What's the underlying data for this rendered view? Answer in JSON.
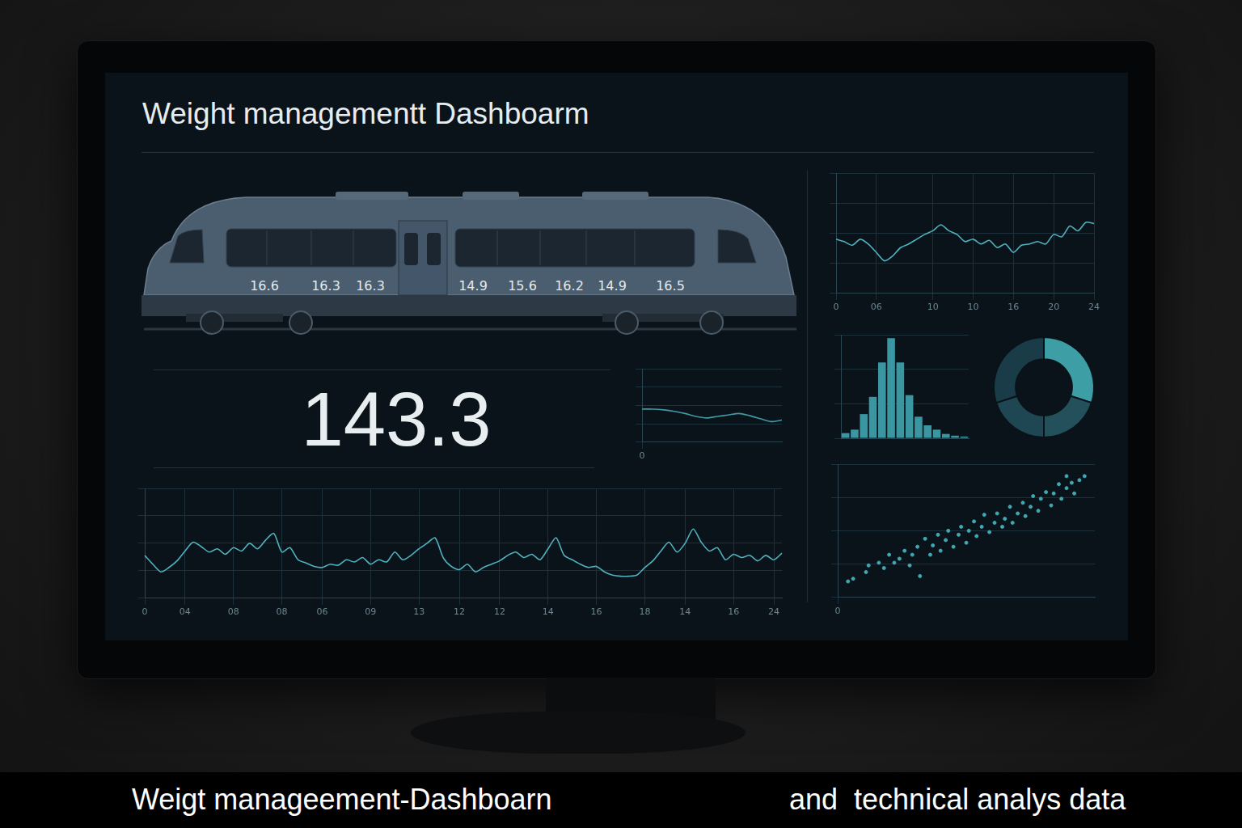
{
  "header": {
    "title": "Weight managementt Dashboarm"
  },
  "train": {
    "labels": [
      16.6,
      16.3,
      16.3,
      14.9,
      15.6,
      16.2,
      14.9,
      16.5
    ]
  },
  "kpi": {
    "value": 143.3
  },
  "chart_data": [
    {
      "type": "line",
      "color": "#4fb3bf",
      "grid": true,
      "tick_labels": "x",
      "categories": [
        "0",
        null,
        null,
        null,
        null,
        "06",
        null,
        null,
        null,
        null,
        null,
        null,
        "10",
        null,
        null,
        null,
        null,
        "10",
        null,
        null,
        null,
        null,
        "16",
        null,
        null,
        null,
        null,
        "20",
        null,
        null,
        null,
        null,
        "24"
      ],
      "values": [
        4.5,
        4.3,
        4.0,
        4.5,
        4.1,
        3.4,
        2.7,
        3.1,
        3.8,
        4.1,
        4.5,
        4.9,
        5.2,
        5.7,
        5.2,
        4.9,
        4.3,
        4.5,
        4.1,
        4.4,
        3.8,
        4.1,
        3.4,
        4.0,
        4.1,
        4.3,
        4.1,
        4.9,
        4.7,
        5.6,
        5.2,
        5.9,
        5.8
      ],
      "ylim": [
        0,
        10
      ],
      "yticks": [
        0,
        2.5,
        5,
        7.5,
        10
      ]
    },
    {
      "type": "line",
      "color": "#3f9aa5",
      "grid": true,
      "tick_labels": "x",
      "categories": [
        "0",
        null,
        null,
        null,
        null,
        null,
        null,
        null,
        null,
        null,
        null,
        null,
        null,
        null
      ],
      "values": [
        4.5,
        4.5,
        4.4,
        4.2,
        3.9,
        3.5,
        3.3,
        3.5,
        3.7,
        3.9,
        3.6,
        3.2,
        2.8,
        3.0
      ],
      "ylim": [
        0,
        10
      ],
      "yticks": [
        0,
        2.5,
        5,
        7.5,
        10
      ]
    },
    {
      "type": "histogram",
      "color": "#3a96a0",
      "grid": true,
      "tick_labels": false,
      "bins": [
        0,
        1,
        2,
        3,
        4,
        5,
        6,
        7,
        8,
        9,
        10,
        11,
        12,
        13,
        14
      ],
      "values": [
        6,
        10,
        28,
        48,
        88,
        116,
        88,
        50,
        25,
        15,
        10,
        5,
        3,
        2
      ],
      "ylim": [
        0,
        120
      ],
      "yticks": [
        0,
        40,
        80,
        120
      ]
    },
    {
      "type": "doughnut",
      "values": [
        30,
        20,
        20,
        30
      ],
      "colors": [
        "#3e9ea6",
        "#24505c",
        "#1f4653",
        "#1a3c48"
      ]
    },
    {
      "type": "scatter",
      "color": "#3fa9b3",
      "grid": true,
      "tick_labels": "x",
      "x": [
        0.4,
        0.6,
        1.1,
        1.2,
        1.6,
        1.8,
        2.0,
        2.2,
        2.4,
        2.6,
        2.8,
        2.9,
        3.1,
        3.2,
        3.4,
        3.6,
        3.7,
        3.9,
        4.0,
        4.2,
        4.3,
        4.5,
        4.7,
        4.8,
        5.0,
        5.1,
        5.3,
        5.4,
        5.6,
        5.7,
        5.9,
        6.1,
        6.2,
        6.4,
        6.5,
        6.7,
        6.8,
        7.0,
        7.2,
        7.3,
        7.5,
        7.6,
        7.8,
        7.9,
        8.1,
        8.3,
        8.4,
        8.6,
        8.7,
        8.9,
        9.1,
        9.2,
        9.4,
        9.6,
        8.9
      ],
      "values": [
        1.2,
        1.4,
        1.9,
        2.4,
        2.6,
        2.2,
        3.2,
        2.6,
        2.9,
        3.5,
        2.4,
        3.2,
        3.8,
        1.6,
        4.4,
        3.2,
        3.9,
        4.7,
        3.5,
        4.3,
        5.0,
        3.8,
        4.7,
        5.3,
        4.1,
        5.0,
        5.7,
        4.6,
        5.3,
        6.2,
        4.9,
        5.6,
        6.3,
        5.3,
        5.9,
        6.8,
        5.6,
        6.3,
        7.1,
        6.1,
        6.8,
        7.6,
        6.5,
        7.4,
        7.9,
        6.9,
        7.8,
        8.5,
        7.4,
        8.2,
        8.6,
        7.8,
        8.8,
        9.1,
        9.1
      ],
      "xlim": [
        0,
        10
      ],
      "xticks": [
        0
      ],
      "ylim": [
        0,
        10
      ],
      "yticks": [
        0,
        2.5,
        5,
        7.5,
        10
      ]
    },
    {
      "type": "line",
      "color": "#4fb3bf",
      "grid": true,
      "tick_labels": "x",
      "categories": [
        "0",
        null,
        null,
        null,
        null,
        "04",
        null,
        null,
        null,
        null,
        null,
        "08",
        null,
        null,
        null,
        null,
        null,
        "08",
        null,
        null,
        null,
        null,
        "06",
        null,
        null,
        null,
        null,
        null,
        "09",
        null,
        null,
        null,
        null,
        null,
        "13",
        null,
        null,
        null,
        null,
        "12",
        null,
        null,
        null,
        null,
        "12",
        null,
        null,
        null,
        null,
        null,
        "14",
        null,
        null,
        null,
        null,
        null,
        "16",
        null,
        null,
        null,
        null,
        null,
        "18",
        null,
        null,
        null,
        null,
        "14",
        null,
        null,
        null,
        null,
        null,
        "16",
        null,
        null,
        null,
        null,
        "24",
        null
      ],
      "values": [
        3.9,
        3.1,
        2.4,
        2.8,
        3.4,
        4.3,
        5.1,
        4.7,
        4.2,
        4.5,
        4.0,
        4.6,
        4.3,
        5.0,
        4.5,
        5.3,
        5.9,
        4.2,
        4.6,
        3.5,
        3.2,
        2.9,
        2.8,
        3.1,
        3.0,
        3.5,
        3.3,
        3.7,
        3.1,
        3.5,
        3.3,
        4.2,
        3.5,
        3.9,
        4.5,
        5.0,
        5.5,
        3.7,
        2.9,
        2.6,
        3.1,
        2.4,
        2.8,
        3.1,
        3.4,
        3.9,
        4.2,
        3.7,
        4.0,
        3.5,
        4.5,
        5.5,
        3.9,
        3.5,
        3.1,
        2.8,
        2.9,
        2.4,
        2.1,
        2.0,
        2.0,
        2.1,
        2.8,
        3.4,
        4.3,
        5.1,
        4.2,
        5.0,
        6.3,
        5.1,
        4.3,
        4.6,
        3.5,
        4.0,
        3.7,
        3.9,
        3.4,
        3.9,
        3.5,
        4.1
      ],
      "ylim": [
        0,
        10
      ],
      "yticks": [
        0,
        2.5,
        5,
        7.5,
        10
      ]
    }
  ],
  "caption": {
    "left": "Weigt manageement-Dashboarn",
    "right": "and  technical analys data"
  }
}
